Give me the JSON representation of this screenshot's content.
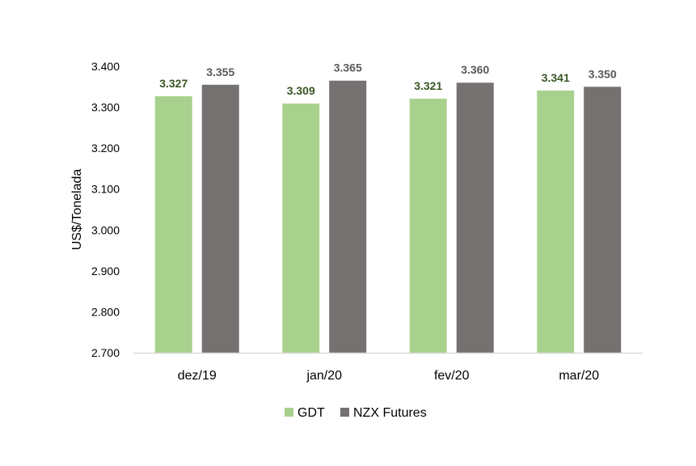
{
  "chart_data": {
    "type": "bar",
    "title": "",
    "xlabel": "",
    "ylabel": "US$/Tonelada",
    "categories": [
      "dez/19",
      "jan/20",
      "fev/20",
      "mar/20"
    ],
    "series": [
      {
        "name": "GDT",
        "values": [
          3327,
          3309,
          3321,
          3341
        ],
        "labels": [
          "3.327",
          "3.309",
          "3.321",
          "3.341"
        ],
        "color": "#a9d18e",
        "label_color": "#375623"
      },
      {
        "name": "NZX Futures",
        "values": [
          3355,
          3365,
          3360,
          3350
        ],
        "labels": [
          "3.355",
          "3.365",
          "3.360",
          "3.350"
        ],
        "color": "#767171",
        "label_color": "#595959"
      }
    ],
    "ylim": [
      2700,
      3400
    ],
    "yticks": [
      2700,
      2800,
      2900,
      3000,
      3100,
      3200,
      3300,
      3400
    ],
    "ytick_labels": [
      "2.700",
      "2.800",
      "2.900",
      "3.000",
      "3.100",
      "3.200",
      "3.300",
      "3.400"
    ],
    "grid": false,
    "legend_position": "bottom",
    "axis_color": "#d9d9d9"
  }
}
